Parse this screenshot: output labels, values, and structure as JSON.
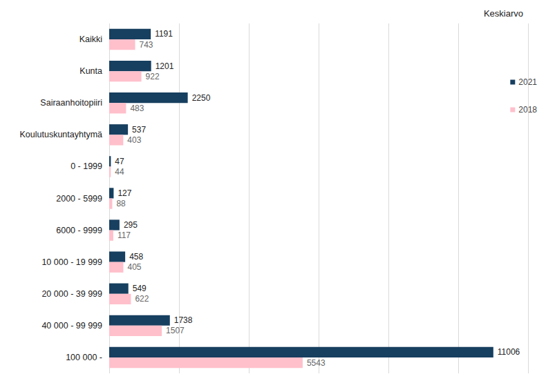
{
  "chart_data": {
    "type": "bar",
    "title": "Keskiarvo",
    "orientation": "horizontal",
    "categories": [
      "Kaikki",
      "Kunta",
      "Sairaanhoitopiiri",
      "Koulutuskuntayhtymä",
      "0 - 1999",
      "2000 - 5999",
      "6000 - 9999",
      "10 000 - 19 999",
      "20 000 - 39 999",
      "40 000 - 99 999",
      "100 000 -"
    ],
    "series": [
      {
        "name": "2021",
        "color": "#173f5f",
        "values": [
          1191,
          1201,
          2250,
          537,
          47,
          127,
          295,
          458,
          549,
          1738,
          11006
        ]
      },
      {
        "name": "2018",
        "color": "#ffc0cb",
        "values": [
          743,
          922,
          483,
          403,
          44,
          88,
          117,
          405,
          622,
          1507,
          5543
        ]
      }
    ],
    "xlim": [
      0,
      12000
    ],
    "xticks": [
      0,
      2000,
      4000,
      6000,
      8000,
      10000,
      12000
    ],
    "grid": true,
    "legend": "right",
    "data_labels": true,
    "tick_labels": "y"
  }
}
